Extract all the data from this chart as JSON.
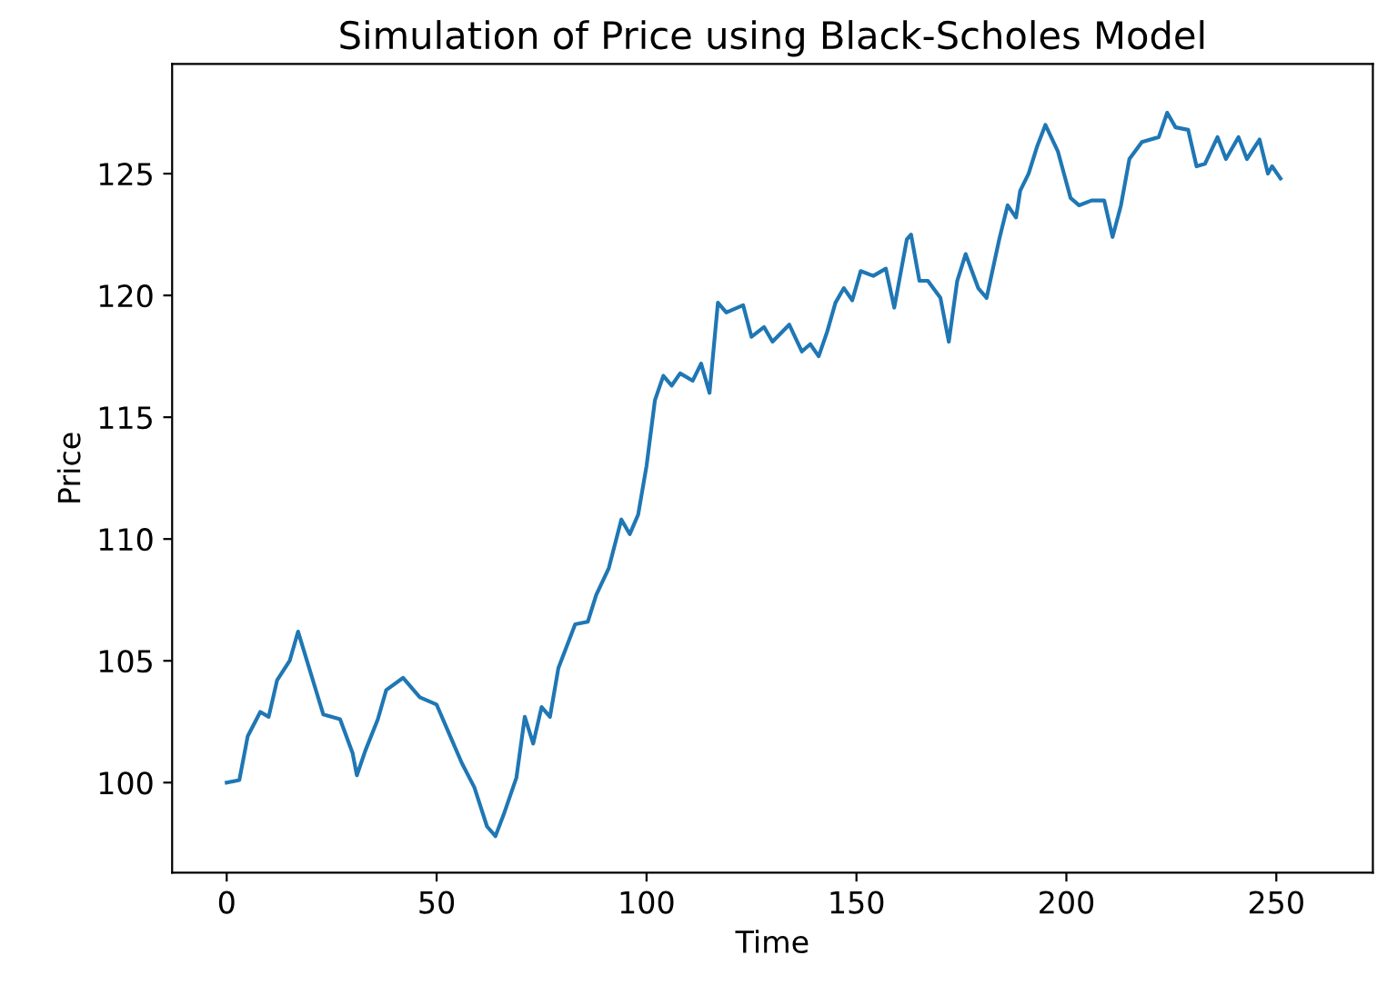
{
  "chart_data": {
    "type": "line",
    "title": "Simulation of Price using Black-Scholes Model",
    "xlabel": "Time",
    "ylabel": "Price",
    "xlim": [
      -13,
      273
    ],
    "ylim": [
      96.3,
      129.5
    ],
    "xticks": [
      0,
      50,
      100,
      150,
      200,
      250
    ],
    "yticks": [
      100,
      105,
      110,
      115,
      120,
      125
    ],
    "grid": false,
    "legend": false,
    "series": [
      {
        "color": "#1f77b4",
        "x": [
          0,
          3,
          5,
          8,
          10,
          12,
          15,
          17,
          20,
          23,
          27,
          30,
          31,
          33,
          36,
          38,
          42,
          46,
          50,
          53,
          56,
          59,
          62,
          64,
          66,
          69,
          71,
          73,
          75,
          77,
          79,
          83,
          86,
          88,
          91,
          94,
          96,
          98,
          100,
          102,
          104,
          106,
          108,
          111,
          113,
          115,
          117,
          119,
          123,
          125,
          128,
          130,
          134,
          137,
          139,
          141,
          143,
          145,
          147,
          149,
          151,
          154,
          157,
          159,
          162,
          163,
          165,
          167,
          170,
          172,
          174,
          176,
          179,
          181,
          184,
          186,
          188,
          189,
          191,
          193,
          195,
          198,
          201,
          203,
          206,
          209,
          211,
          213,
          215,
          218,
          222,
          224,
          226,
          229,
          231,
          233,
          236,
          238,
          241,
          243,
          246,
          248,
          249,
          251
        ],
        "values": [
          100.0,
          100.1,
          101.9,
          102.9,
          102.7,
          104.2,
          105.0,
          106.2,
          104.5,
          102.8,
          102.6,
          101.2,
          100.3,
          101.3,
          102.6,
          103.8,
          104.3,
          103.5,
          103.2,
          102.0,
          100.8,
          99.8,
          98.2,
          97.8,
          98.7,
          100.2,
          102.7,
          101.6,
          103.1,
          102.7,
          104.7,
          106.5,
          106.6,
          107.7,
          108.8,
          110.8,
          110.2,
          111.0,
          113.0,
          115.7,
          116.7,
          116.3,
          116.8,
          116.5,
          117.2,
          116.0,
          119.7,
          119.3,
          119.6,
          118.3,
          118.7,
          118.1,
          118.8,
          117.7,
          118.0,
          117.5,
          118.5,
          119.7,
          120.3,
          119.8,
          121.0,
          120.8,
          121.1,
          119.5,
          122.3,
          122.5,
          120.6,
          120.6,
          119.9,
          118.1,
          120.6,
          121.7,
          120.3,
          119.9,
          122.3,
          123.7,
          123.2,
          124.3,
          125.0,
          126.1,
          127.0,
          125.9,
          124.0,
          123.7,
          123.9,
          123.9,
          122.4,
          123.7,
          125.6,
          126.3,
          126.5,
          127.5,
          126.9,
          126.8,
          125.3,
          125.4,
          126.5,
          125.6,
          126.5,
          125.6,
          126.4,
          125.0,
          125.3,
          124.8
        ]
      }
    ]
  }
}
